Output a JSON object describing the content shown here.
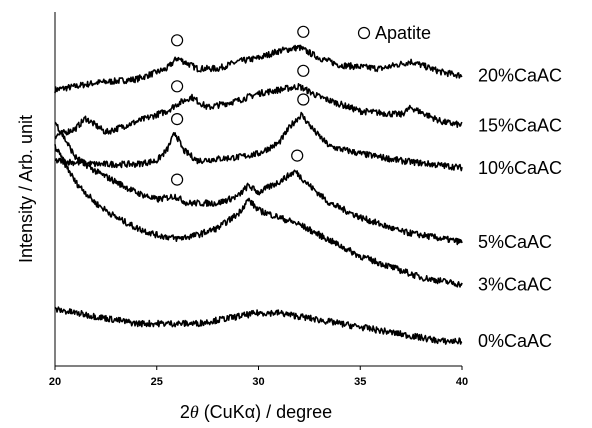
{
  "chart_data": {
    "type": "line",
    "xlabel_parts": [
      "2",
      "θ",
      " (CuKα) / degree"
    ],
    "ylabel": "Intensity / Arb. unit",
    "xlim": [
      20,
      40
    ],
    "x_ticks": [
      20,
      25,
      30,
      35,
      40
    ],
    "legend": {
      "symbol": "open-circle",
      "label": "Apatite",
      "placement": "top-right"
    },
    "series": [
      {
        "name": "20%CaAC",
        "points": [
          [
            20,
            0.78
          ],
          [
            22,
            0.8
          ],
          [
            24,
            0.81
          ],
          [
            25.5,
            0.84
          ],
          [
            26,
            0.87
          ],
          [
            27,
            0.84
          ],
          [
            28,
            0.84
          ],
          [
            29,
            0.86
          ],
          [
            30,
            0.87
          ],
          [
            31,
            0.89
          ],
          [
            32,
            0.9
          ],
          [
            33,
            0.87
          ],
          [
            34,
            0.85
          ],
          [
            36,
            0.84
          ],
          [
            37.5,
            0.86
          ],
          [
            39,
            0.83
          ],
          [
            40,
            0.82
          ]
        ],
        "apatite_markers": [
          26.0,
          32.2
        ]
      },
      {
        "name": "15%CaAC",
        "points": [
          [
            20,
            0.65
          ],
          [
            21,
            0.67
          ],
          [
            21.5,
            0.7
          ],
          [
            22.5,
            0.66
          ],
          [
            24,
            0.69
          ],
          [
            25.5,
            0.72
          ],
          [
            26,
            0.74
          ],
          [
            26.7,
            0.76
          ],
          [
            27.5,
            0.73
          ],
          [
            29,
            0.75
          ],
          [
            30,
            0.77
          ],
          [
            31,
            0.78
          ],
          [
            32,
            0.79
          ],
          [
            33,
            0.76
          ],
          [
            34,
            0.74
          ],
          [
            35,
            0.72
          ],
          [
            37,
            0.71
          ],
          [
            37.5,
            0.73
          ],
          [
            39,
            0.69
          ],
          [
            40,
            0.68
          ]
        ],
        "apatite_markers": [
          26.0,
          32.2
        ]
      },
      {
        "name": "10%CaAC",
        "points": [
          [
            20,
            0.58
          ],
          [
            22,
            0.57
          ],
          [
            24,
            0.57
          ],
          [
            25,
            0.58
          ],
          [
            25.5,
            0.61
          ],
          [
            25.9,
            0.66
          ],
          [
            26.3,
            0.61
          ],
          [
            27,
            0.58
          ],
          [
            29,
            0.59
          ],
          [
            30,
            0.6
          ],
          [
            31,
            0.63
          ],
          [
            31.6,
            0.68
          ],
          [
            32.1,
            0.71
          ],
          [
            32.8,
            0.66
          ],
          [
            33.5,
            0.62
          ],
          [
            35,
            0.6
          ],
          [
            37,
            0.58
          ],
          [
            40,
            0.56
          ]
        ],
        "apatite_markers": [
          26.0,
          32.2
        ]
      },
      {
        "name": "5%CaAC",
        "points": [
          [
            20,
            0.69
          ],
          [
            20.5,
            0.64
          ],
          [
            21,
            0.59
          ],
          [
            22,
            0.55
          ],
          [
            23,
            0.52
          ],
          [
            24,
            0.49
          ],
          [
            25,
            0.47
          ],
          [
            25.9,
            0.48
          ],
          [
            26.5,
            0.46
          ],
          [
            28,
            0.46
          ],
          [
            29,
            0.48
          ],
          [
            29.5,
            0.51
          ],
          [
            30,
            0.49
          ],
          [
            31,
            0.52
          ],
          [
            31.8,
            0.55
          ],
          [
            32.5,
            0.51
          ],
          [
            33.5,
            0.46
          ],
          [
            35,
            0.42
          ],
          [
            37,
            0.38
          ],
          [
            39,
            0.36
          ],
          [
            40,
            0.35
          ]
        ],
        "apatite_markers": [
          26.0,
          31.9
        ]
      },
      {
        "name": "3%CaAC",
        "points": [
          [
            20,
            0.62
          ],
          [
            20.5,
            0.57
          ],
          [
            21,
            0.52
          ],
          [
            22,
            0.46
          ],
          [
            23,
            0.42
          ],
          [
            24,
            0.39
          ],
          [
            25,
            0.37
          ],
          [
            26,
            0.36
          ],
          [
            27,
            0.37
          ],
          [
            28,
            0.39
          ],
          [
            29,
            0.43
          ],
          [
            29.5,
            0.47
          ],
          [
            30,
            0.44
          ],
          [
            31,
            0.42
          ],
          [
            32,
            0.4
          ],
          [
            33,
            0.37
          ],
          [
            34,
            0.34
          ],
          [
            35,
            0.31
          ],
          [
            36,
            0.29
          ],
          [
            37,
            0.27
          ],
          [
            38,
            0.25
          ],
          [
            39,
            0.24
          ],
          [
            40,
            0.23
          ]
        ],
        "apatite_markers": []
      },
      {
        "name": "0%CaAC",
        "points": [
          [
            20,
            0.16
          ],
          [
            21,
            0.15
          ],
          [
            22,
            0.14
          ],
          [
            23,
            0.13
          ],
          [
            24,
            0.12
          ],
          [
            25,
            0.12
          ],
          [
            26,
            0.12
          ],
          [
            27,
            0.12
          ],
          [
            28,
            0.13
          ],
          [
            29,
            0.14
          ],
          [
            30,
            0.15
          ],
          [
            31,
            0.15
          ],
          [
            32,
            0.14
          ],
          [
            33,
            0.13
          ],
          [
            34,
            0.12
          ],
          [
            35,
            0.11
          ],
          [
            36,
            0.1
          ],
          [
            37,
            0.09
          ],
          [
            38,
            0.08
          ],
          [
            39,
            0.07
          ],
          [
            40,
            0.07
          ]
        ],
        "apatite_markers": []
      }
    ]
  }
}
